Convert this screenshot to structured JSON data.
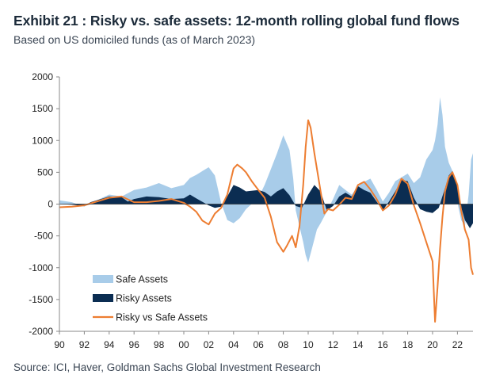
{
  "title": "Exhibit 21 : Risky vs. safe assets: 12-month rolling global fund flows",
  "subtitle": "Based on US domiciled funds (as of March 2023)",
  "source": "Source: ICI, Haver, Goldman Sachs Global Investment Research",
  "chart_data": {
    "type": "area",
    "ylim": [
      -2000,
      2000
    ],
    "yticks": [
      2000,
      1500,
      1000,
      500,
      0,
      -500,
      -1000,
      -1500,
      -2000
    ],
    "ytick_labels": [
      "2000",
      "1500",
      "1000",
      "500",
      "0",
      "-500",
      "-1000",
      "-1500",
      "-2000"
    ],
    "xlim": [
      1990,
      2023.25
    ],
    "xticks": [
      1990,
      1992,
      1994,
      1996,
      1998,
      2000,
      2002,
      2004,
      2006,
      2008,
      2010,
      2012,
      2014,
      2016,
      2018,
      2020,
      2022
    ],
    "xtick_labels": [
      "90",
      "92",
      "94",
      "96",
      "98",
      "00",
      "02",
      "04",
      "06",
      "08",
      "10",
      "12",
      "14",
      "16",
      "18",
      "20",
      "22"
    ],
    "legend_position": "bottom-left",
    "series": [
      {
        "name": "Safe Assets",
        "kind": "area",
        "color": "#a8cce9",
        "points": [
          [
            1990,
            60
          ],
          [
            1991,
            30
          ],
          [
            1992,
            -40
          ],
          [
            1993,
            60
          ],
          [
            1994,
            150
          ],
          [
            1995,
            120
          ],
          [
            1996,
            220
          ],
          [
            1997,
            260
          ],
          [
            1998,
            330
          ],
          [
            1999,
            250
          ],
          [
            2000,
            300
          ],
          [
            2000.5,
            410
          ],
          [
            2001,
            460
          ],
          [
            2001.5,
            520
          ],
          [
            2002,
            580
          ],
          [
            2002.5,
            450
          ],
          [
            2003,
            20
          ],
          [
            2003.5,
            -250
          ],
          [
            2004,
            -300
          ],
          [
            2004.5,
            -220
          ],
          [
            2005,
            -80
          ],
          [
            2006,
            100
          ],
          [
            2006.5,
            300
          ],
          [
            2007,
            550
          ],
          [
            2007.5,
            800
          ],
          [
            2008,
            1080
          ],
          [
            2008.5,
            850
          ],
          [
            2008.8,
            400
          ],
          [
            2009,
            -100
          ],
          [
            2009.3,
            -350
          ],
          [
            2009.6,
            -600
          ],
          [
            2009.8,
            -800
          ],
          [
            2010,
            -920
          ],
          [
            2010.3,
            -700
          ],
          [
            2010.7,
            -400
          ],
          [
            2011,
            -300
          ],
          [
            2011.5,
            -120
          ],
          [
            2012,
            80
          ],
          [
            2012.5,
            300
          ],
          [
            2013,
            220
          ],
          [
            2013.5,
            150
          ],
          [
            2014,
            280
          ],
          [
            2014.5,
            350
          ],
          [
            2015,
            400
          ],
          [
            2015.5,
            230
          ],
          [
            2016,
            40
          ],
          [
            2016.5,
            180
          ],
          [
            2017,
            360
          ],
          [
            2017.5,
            420
          ],
          [
            2018,
            480
          ],
          [
            2018.5,
            330
          ],
          [
            2019,
            420
          ],
          [
            2019.5,
            700
          ],
          [
            2020,
            850
          ],
          [
            2020.2,
            1000
          ],
          [
            2020.4,
            1250
          ],
          [
            2020.6,
            1680
          ],
          [
            2020.8,
            1400
          ],
          [
            2021,
            900
          ],
          [
            2021.3,
            650
          ],
          [
            2021.6,
            520
          ],
          [
            2022,
            20
          ],
          [
            2022.3,
            -250
          ],
          [
            2022.6,
            -350
          ],
          [
            2022.9,
            150
          ],
          [
            2023.1,
            700
          ],
          [
            2023.25,
            800
          ]
        ]
      },
      {
        "name": "Risky Assets",
        "kind": "area",
        "color": "#0b2d52",
        "points": [
          [
            1990,
            0
          ],
          [
            1991,
            -10
          ],
          [
            1992,
            -30
          ],
          [
            1992.5,
            30
          ],
          [
            1993,
            60
          ],
          [
            1994,
            120
          ],
          [
            1995,
            110
          ],
          [
            1995.5,
            40
          ],
          [
            1996,
            80
          ],
          [
            1997,
            120
          ],
          [
            1998,
            110
          ],
          [
            1999,
            80
          ],
          [
            2000,
            90
          ],
          [
            2000.5,
            150
          ],
          [
            2001,
            90
          ],
          [
            2002,
            -20
          ],
          [
            2002.5,
            -60
          ],
          [
            2003,
            -40
          ],
          [
            2003.5,
            120
          ],
          [
            2004,
            300
          ],
          [
            2004.5,
            260
          ],
          [
            2005,
            200
          ],
          [
            2006,
            220
          ],
          [
            2006.5,
            190
          ],
          [
            2007,
            120
          ],
          [
            2007.5,
            200
          ],
          [
            2008,
            250
          ],
          [
            2008.5,
            140
          ],
          [
            2009,
            -30
          ],
          [
            2009.5,
            -60
          ],
          [
            2010,
            150
          ],
          [
            2010.5,
            300
          ],
          [
            2011,
            200
          ],
          [
            2011.5,
            -100
          ],
          [
            2012,
            -30
          ],
          [
            2012.5,
            120
          ],
          [
            2013,
            180
          ],
          [
            2013.5,
            120
          ],
          [
            2014,
            280
          ],
          [
            2014.5,
            220
          ],
          [
            2015,
            180
          ],
          [
            2015.5,
            40
          ],
          [
            2016,
            -100
          ],
          [
            2016.5,
            40
          ],
          [
            2017,
            200
          ],
          [
            2017.5,
            380
          ],
          [
            2018,
            360
          ],
          [
            2018.5,
            100
          ],
          [
            2019,
            -80
          ],
          [
            2019.5,
            -120
          ],
          [
            2020,
            -140
          ],
          [
            2020.5,
            -60
          ],
          [
            2021,
            250
          ],
          [
            2021.3,
            450
          ],
          [
            2021.6,
            520
          ],
          [
            2022,
            300
          ],
          [
            2022.3,
            -50
          ],
          [
            2022.6,
            -250
          ],
          [
            2023,
            -380
          ],
          [
            2023.25,
            -300
          ]
        ]
      },
      {
        "name": "Risky vs Safe Assets",
        "kind": "line",
        "color": "#ed7d31",
        "points": [
          [
            1990,
            -50
          ],
          [
            1991,
            -40
          ],
          [
            1992,
            -20
          ],
          [
            1993,
            40
          ],
          [
            1994,
            100
          ],
          [
            1995,
            120
          ],
          [
            1996,
            30
          ],
          [
            1997,
            30
          ],
          [
            1998,
            50
          ],
          [
            1999,
            80
          ],
          [
            2000,
            20
          ],
          [
            2000.5,
            -40
          ],
          [
            2001,
            -120
          ],
          [
            2001.5,
            -260
          ],
          [
            2002,
            -320
          ],
          [
            2002.5,
            -150
          ],
          [
            2003,
            -60
          ],
          [
            2003.5,
            150
          ],
          [
            2004,
            560
          ],
          [
            2004.3,
            620
          ],
          [
            2004.7,
            560
          ],
          [
            2005,
            500
          ],
          [
            2005.5,
            350
          ],
          [
            2006,
            220
          ],
          [
            2006.5,
            100
          ],
          [
            2007,
            -200
          ],
          [
            2007.5,
            -600
          ],
          [
            2008,
            -750
          ],
          [
            2008.3,
            -650
          ],
          [
            2008.7,
            -500
          ],
          [
            2009,
            -680
          ],
          [
            2009.3,
            -350
          ],
          [
            2009.6,
            300
          ],
          [
            2009.8,
            900
          ],
          [
            2010,
            1320
          ],
          [
            2010.2,
            1200
          ],
          [
            2010.5,
            800
          ],
          [
            2011,
            200
          ],
          [
            2011.3,
            -150
          ],
          [
            2011.6,
            -80
          ],
          [
            2012,
            -100
          ],
          [
            2012.5,
            -10
          ],
          [
            2013,
            100
          ],
          [
            2013.5,
            80
          ],
          [
            2014,
            300
          ],
          [
            2014.5,
            350
          ],
          [
            2015,
            230
          ],
          [
            2015.5,
            80
          ],
          [
            2016,
            -100
          ],
          [
            2016.5,
            -20
          ],
          [
            2017,
            150
          ],
          [
            2017.5,
            400
          ],
          [
            2018,
            320
          ],
          [
            2018.5,
            -20
          ],
          [
            2019,
            -300
          ],
          [
            2019.5,
            -600
          ],
          [
            2020,
            -900
          ],
          [
            2020.2,
            -1850
          ],
          [
            2020.4,
            -1300
          ],
          [
            2020.6,
            -700
          ],
          [
            2020.8,
            -200
          ],
          [
            2021,
            200
          ],
          [
            2021.3,
            420
          ],
          [
            2021.6,
            500
          ],
          [
            2022,
            300
          ],
          [
            2022.3,
            -100
          ],
          [
            2022.6,
            -400
          ],
          [
            2022.9,
            -560
          ],
          [
            2023.1,
            -1000
          ],
          [
            2023.25,
            -1110
          ]
        ]
      }
    ]
  }
}
